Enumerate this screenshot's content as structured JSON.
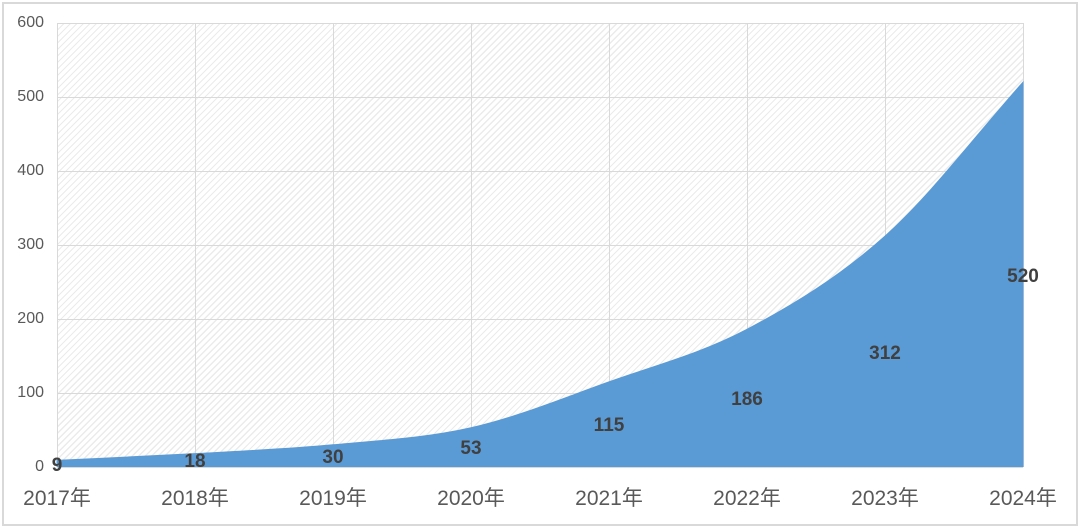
{
  "chart_data": {
    "type": "area",
    "title": "",
    "categories": [
      "2017年",
      "2018年",
      "2019年",
      "2020年",
      "2021年",
      "2022年",
      "2023年",
      "2024年"
    ],
    "series": [
      {
        "name": "",
        "values": [
          9,
          18,
          30,
          53,
          115,
          186,
          312,
          520
        ]
      }
    ],
    "data_labels": [
      "9",
      "18",
      "30",
      "53",
      "115",
      "186",
      "312",
      "520"
    ],
    "data_label_position": "center-of-area",
    "y_ticks": [
      0,
      100,
      200,
      300,
      400,
      500,
      600
    ],
    "y_tick_labels": [
      "0",
      "100",
      "200",
      "300",
      "400",
      "500",
      "600"
    ],
    "ylim": [
      0,
      600
    ],
    "xlabel": "",
    "ylabel": "",
    "grid": "horizontal-and-vertical",
    "legend_position": "none",
    "smooth": true,
    "plot_background": "diagonal-hatch-pattern",
    "colors": {
      "area_fill": "#5B9BD5",
      "data_label": "#404040",
      "axis_label": "#595959",
      "gridline": "#D9D9D9",
      "pattern_stripe": "#EBEBEB",
      "background": "#FFFFFF",
      "chart_border": "#D9D9D9"
    }
  }
}
